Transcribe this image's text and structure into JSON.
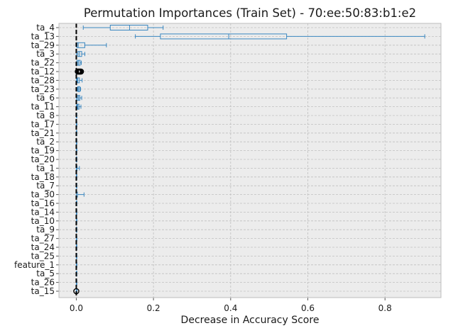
{
  "chart_data": {
    "type": "boxplot",
    "orientation": "horizontal",
    "title": "Permutation Importances (Train Set) - 70:ee:50:83:b1:e2",
    "xlabel": "Decrease in Accuracy Score",
    "ylabel": "",
    "xlim": [
      -0.045,
      0.945
    ],
    "xticks": [
      0.0,
      0.2,
      0.4,
      0.6,
      0.8
    ],
    "xtick_labels": [
      "0.0",
      "0.2",
      "0.4",
      "0.6",
      "0.8"
    ],
    "grid": true,
    "reference_line": {
      "x": 0.0,
      "style": "dashed",
      "color": "#000000"
    },
    "colors": {
      "box": "#3a87c0",
      "background": "#ececec",
      "grid": "#c0c0c0"
    },
    "categories": [
      "ta_4",
      "ta_13",
      "ta_29",
      "ta_3",
      "ta_22",
      "ta_12",
      "ta_28",
      "ta_23",
      "ta_6",
      "ta_11",
      "ta_8",
      "ta_17",
      "ta_21",
      "ta_2",
      "ta_19",
      "ta_20",
      "ta_1",
      "ta_18",
      "ta_7",
      "ta_30",
      "ta_16",
      "ta_14",
      "ta_10",
      "ta_9",
      "ta_27",
      "ta_24",
      "ta_25",
      "feature_1",
      "ta_5",
      "ta_26",
      "ta_15"
    ],
    "boxes": [
      {
        "label": "ta_4",
        "whislo": 0.018,
        "q1": 0.088,
        "med": 0.138,
        "q3": 0.185,
        "whishi": 0.225,
        "fliers": []
      },
      {
        "label": "ta_13",
        "whislo": 0.153,
        "q1": 0.218,
        "med": 0.395,
        "q3": 0.545,
        "whishi": 0.903,
        "fliers": []
      },
      {
        "label": "ta_29",
        "whislo": 0.0,
        "q1": 0.002,
        "med": 0.005,
        "q3": 0.022,
        "whishi": 0.078,
        "fliers": []
      },
      {
        "label": "ta_3",
        "whislo": 0.0,
        "q1": 0.004,
        "med": 0.008,
        "q3": 0.014,
        "whishi": 0.022,
        "fliers": []
      },
      {
        "label": "ta_22",
        "whislo": 0.001,
        "q1": 0.003,
        "med": 0.006,
        "q3": 0.01,
        "whishi": 0.013,
        "fliers": []
      },
      {
        "label": "ta_12",
        "whislo": 0.0,
        "q1": 0.0,
        "med": 0.0,
        "q3": 0.0,
        "whishi": 0.0,
        "fliers": [
          0.004,
          0.006,
          0.008,
          0.01,
          0.012
        ]
      },
      {
        "label": "ta_28",
        "whislo": 0.0,
        "q1": 0.002,
        "med": 0.004,
        "q3": 0.008,
        "whishi": 0.015,
        "fliers": []
      },
      {
        "label": "ta_23",
        "whislo": 0.002,
        "q1": 0.004,
        "med": 0.006,
        "q3": 0.009,
        "whishi": 0.011,
        "fliers": []
      },
      {
        "label": "ta_6",
        "whislo": 0.0,
        "q1": 0.003,
        "med": 0.006,
        "q3": 0.009,
        "whishi": 0.014,
        "fliers": []
      },
      {
        "label": "ta_11",
        "whislo": 0.0,
        "q1": 0.002,
        "med": 0.004,
        "q3": 0.007,
        "whishi": 0.012,
        "fliers": []
      },
      {
        "label": "ta_8",
        "whislo": 0.0,
        "q1": 0.0,
        "med": 0.0,
        "q3": 0.0,
        "whishi": 0.0,
        "fliers": []
      },
      {
        "label": "ta_17",
        "whislo": 0.0,
        "q1": 0.0,
        "med": 0.0,
        "q3": 0.0,
        "whishi": 0.0,
        "fliers": []
      },
      {
        "label": "ta_21",
        "whislo": 0.0,
        "q1": 0.0,
        "med": 0.0,
        "q3": 0.0,
        "whishi": 0.0,
        "fliers": []
      },
      {
        "label": "ta_2",
        "whislo": 0.0,
        "q1": 0.0,
        "med": 0.0,
        "q3": 0.0,
        "whishi": 0.0,
        "fliers": []
      },
      {
        "label": "ta_19",
        "whislo": 0.0,
        "q1": 0.0,
        "med": 0.0,
        "q3": 0.0,
        "whishi": 0.0,
        "fliers": []
      },
      {
        "label": "ta_20",
        "whislo": 0.0,
        "q1": 0.0,
        "med": 0.0,
        "q3": 0.0,
        "whishi": 0.0,
        "fliers": []
      },
      {
        "label": "ta_1",
        "whislo": 0.0,
        "q1": 0.0,
        "med": 0.0,
        "q3": 0.002,
        "whishi": 0.008,
        "fliers": []
      },
      {
        "label": "ta_18",
        "whislo": 0.0,
        "q1": 0.0,
        "med": 0.0,
        "q3": 0.0,
        "whishi": 0.0,
        "fliers": []
      },
      {
        "label": "ta_7",
        "whislo": 0.0,
        "q1": 0.0,
        "med": 0.0,
        "q3": 0.0,
        "whishi": 0.0,
        "fliers": []
      },
      {
        "label": "ta_30",
        "whislo": 0.0,
        "q1": 0.0,
        "med": 0.0,
        "q3": 0.003,
        "whishi": 0.02,
        "fliers": []
      },
      {
        "label": "ta_16",
        "whislo": 0.0,
        "q1": 0.0,
        "med": 0.0,
        "q3": 0.0,
        "whishi": 0.0,
        "fliers": []
      },
      {
        "label": "ta_14",
        "whislo": 0.0,
        "q1": 0.0,
        "med": 0.0,
        "q3": 0.0,
        "whishi": 0.0,
        "fliers": []
      },
      {
        "label": "ta_10",
        "whislo": 0.0,
        "q1": 0.0,
        "med": 0.0,
        "q3": 0.0,
        "whishi": 0.0,
        "fliers": []
      },
      {
        "label": "ta_9",
        "whislo": 0.0,
        "q1": 0.0,
        "med": 0.0,
        "q3": 0.0,
        "whishi": 0.0,
        "fliers": []
      },
      {
        "label": "ta_27",
        "whislo": 0.0,
        "q1": 0.0,
        "med": 0.0,
        "q3": 0.0,
        "whishi": 0.0,
        "fliers": []
      },
      {
        "label": "ta_24",
        "whislo": 0.0,
        "q1": 0.0,
        "med": 0.0,
        "q3": 0.0,
        "whishi": 0.0,
        "fliers": []
      },
      {
        "label": "ta_25",
        "whislo": 0.0,
        "q1": 0.0,
        "med": 0.0,
        "q3": 0.0,
        "whishi": 0.0,
        "fliers": []
      },
      {
        "label": "feature_1",
        "whislo": 0.0,
        "q1": 0.0,
        "med": 0.0,
        "q3": 0.0,
        "whishi": 0.0,
        "fliers": []
      },
      {
        "label": "ta_5",
        "whislo": 0.0,
        "q1": 0.0,
        "med": 0.0,
        "q3": 0.0,
        "whishi": 0.0,
        "fliers": []
      },
      {
        "label": "ta_26",
        "whislo": 0.0,
        "q1": 0.0,
        "med": 0.0,
        "q3": 0.0,
        "whishi": 0.0,
        "fliers": []
      },
      {
        "label": "ta_15",
        "whislo": 0.0,
        "q1": 0.0,
        "med": 0.0,
        "q3": 0.0,
        "whishi": 0.0,
        "fliers": [
          0.0
        ]
      }
    ]
  }
}
